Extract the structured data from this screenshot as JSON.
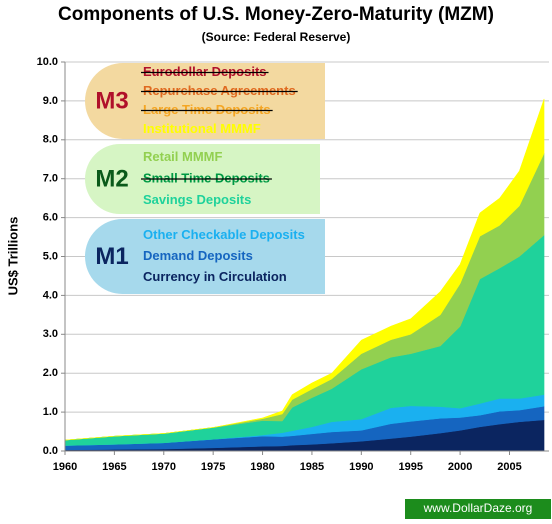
{
  "chart_data": {
    "type": "area",
    "stacked": true,
    "title": "Components of U.S. Money-Zero-Maturity (MZM)",
    "subtitle": "(Source: Federal Reserve)",
    "y_label": "US$ Trillions",
    "watermark": "www.DollarDaze.org",
    "x": [
      1960,
      1965,
      1970,
      1975,
      1980,
      1982,
      1983,
      1985,
      1987,
      1990,
      1993,
      1995,
      1998,
      2000,
      2002,
      2004,
      2006,
      2008.5
    ],
    "series": [
      {
        "name": "Currency in Circulation",
        "color": "#0b2560",
        "values": [
          0.03,
          0.04,
          0.05,
          0.08,
          0.12,
          0.13,
          0.15,
          0.17,
          0.2,
          0.25,
          0.32,
          0.37,
          0.46,
          0.53,
          0.62,
          0.69,
          0.75,
          0.8
        ]
      },
      {
        "name": "Demand Deposits",
        "color": "#1565c0",
        "values": [
          0.11,
          0.13,
          0.16,
          0.22,
          0.26,
          0.24,
          0.24,
          0.27,
          0.29,
          0.28,
          0.38,
          0.39,
          0.38,
          0.33,
          0.3,
          0.33,
          0.3,
          0.35
        ]
      },
      {
        "name": "Other Checkable Deposits",
        "color": "#1ab0f0",
        "values": [
          0,
          0,
          0,
          0.002,
          0.03,
          0.1,
          0.13,
          0.18,
          0.26,
          0.29,
          0.41,
          0.4,
          0.3,
          0.24,
          0.3,
          0.33,
          0.3,
          0.3
        ]
      },
      {
        "name": "Savings Deposits",
        "color": "#1fd29b",
        "values": [
          0.14,
          0.21,
          0.24,
          0.3,
          0.37,
          0.3,
          0.6,
          0.75,
          0.85,
          1.28,
          1.3,
          1.34,
          1.56,
          2.1,
          3.2,
          3.35,
          3.65,
          4.1
        ]
      },
      {
        "name": "Retail MMMF",
        "color": "#92d050",
        "values": [
          0,
          0,
          0,
          0.003,
          0.05,
          0.18,
          0.2,
          0.22,
          0.25,
          0.4,
          0.45,
          0.5,
          0.8,
          1.1,
          1.1,
          1.1,
          1.3,
          2.1
        ]
      },
      {
        "name": "Institutional MMMF",
        "color": "#ffff00",
        "values": [
          0,
          0,
          0,
          0,
          0.02,
          0.08,
          0.13,
          0.16,
          0.15,
          0.35,
          0.35,
          0.4,
          0.6,
          0.5,
          0.6,
          0.7,
          0.9,
          1.4
        ]
      }
    ],
    "legend_groups": [
      {
        "label": "M3",
        "label_color": "#b0102a",
        "color": "#f3d9a0",
        "rows": [
          {
            "text": "Eurodollar Deposits",
            "color": "#b0102a",
            "struck": true
          },
          {
            "text": "Repurchase Agreements",
            "color": "#e06a20",
            "struck": true
          },
          {
            "text": "Large Time Deposits",
            "color": "#f5a623",
            "struck": true
          },
          {
            "series": 5
          }
        ]
      },
      {
        "label": "M2",
        "label_color": "#0a5a1a",
        "color": "#d6f5c4",
        "rows": [
          {
            "series": 4
          },
          {
            "text": "Small Time Deposits",
            "color": "#009944",
            "struck": true
          },
          {
            "series": 3
          }
        ]
      },
      {
        "label": "M1",
        "label_color": "#0b2560",
        "color": "#a6d9ec",
        "rows": [
          {
            "series": 2
          },
          {
            "series": 1
          },
          {
            "series": 0
          }
        ]
      }
    ],
    "xlim": [
      1960,
      2009
    ],
    "xticks": [
      1960,
      1965,
      1970,
      1975,
      1980,
      1985,
      1990,
      1995,
      2000,
      2005
    ],
    "ylim": [
      0,
      10
    ],
    "yticks": [
      {
        "value": 0,
        "label": "0.0"
      },
      {
        "value": 1,
        "label": "1.0"
      },
      {
        "value": 2,
        "label": "2.0"
      },
      {
        "value": 3,
        "label": "3.0"
      },
      {
        "value": 4,
        "label": "4.0"
      },
      {
        "value": 5,
        "label": "5.0"
      },
      {
        "value": 6,
        "label": "6.0"
      },
      {
        "value": 7,
        "label": "7.0"
      },
      {
        "value": 8,
        "label": "8.0"
      },
      {
        "value": 9,
        "label": "9.0"
      },
      {
        "value": 10,
        "label": "10.0"
      }
    ],
    "grid": true
  }
}
